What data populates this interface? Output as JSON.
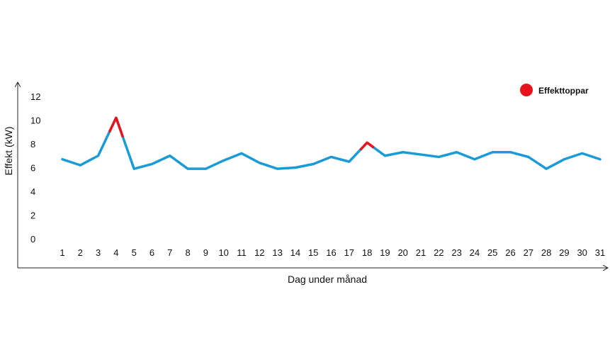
{
  "chart_data": {
    "type": "line",
    "xlabel": "Dag under månad",
    "ylabel": "Effekt  (kW)",
    "ylim": [
      0,
      12
    ],
    "yticks": [
      0,
      2,
      4,
      6,
      8,
      10,
      12
    ],
    "x": [
      1,
      2,
      3,
      4,
      5,
      6,
      7,
      8,
      9,
      10,
      11,
      12,
      13,
      14,
      15,
      16,
      17,
      18,
      19,
      20,
      21,
      22,
      23,
      24,
      25,
      26,
      27,
      28,
      29,
      30,
      31
    ],
    "values": [
      6.7,
      6.2,
      7.0,
      10.2,
      5.9,
      6.3,
      7.0,
      5.9,
      5.9,
      6.6,
      7.2,
      6.4,
      5.9,
      6.0,
      6.3,
      6.9,
      6.5,
      8.1,
      7.0,
      7.3,
      7.1,
      6.9,
      7.3,
      6.7,
      7.3,
      7.3,
      6.9,
      5.9,
      6.7,
      7.2,
      6.7
    ],
    "line_color": "#1a9ad6",
    "peak_color": "#e8141c",
    "peaks": [
      4,
      18
    ],
    "legend": {
      "label": "Effekttoppar",
      "position": "top-right"
    },
    "grid": false
  }
}
